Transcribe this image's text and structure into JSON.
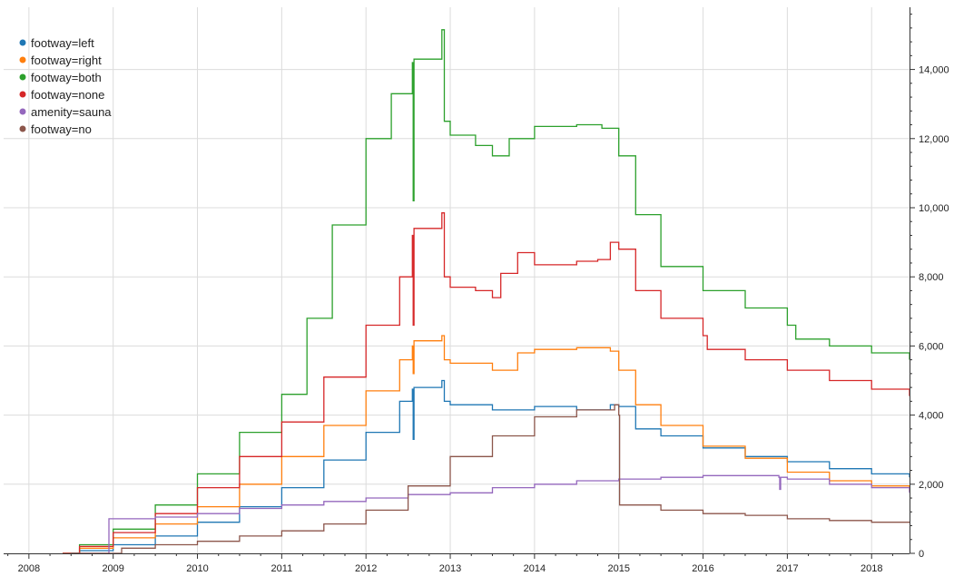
{
  "chart_data": {
    "type": "line",
    "x_ticks": [
      "2008",
      "2009",
      "2010",
      "2011",
      "2012",
      "2013",
      "2014",
      "2015",
      "2016",
      "2017",
      "2018"
    ],
    "y_ticks": [
      "0",
      "2,000",
      "4,000",
      "6,000",
      "8,000",
      "10,000",
      "12,000",
      "14,000"
    ],
    "xlim": [
      2007.7,
      2018.45
    ],
    "ylim": [
      0,
      15800
    ],
    "grid": true,
    "legend_position": "top-left",
    "series": [
      {
        "name": "footway=left",
        "color": "#1f77b4",
        "x": [
          2008.4,
          2008.6,
          2009.0,
          2009.5,
          2010.0,
          2010.5,
          2011.0,
          2011.5,
          2012.0,
          2012.4,
          2012.55,
          2012.56,
          2012.57,
          2012.9,
          2012.93,
          2013.0,
          2013.5,
          2014.0,
          2014.5,
          2014.9,
          2015.0,
          2015.2,
          2015.5,
          2016.0,
          2016.5,
          2017.0,
          2017.5,
          2018.0,
          2018.45
        ],
        "y": [
          0,
          80,
          250,
          500,
          900,
          1350,
          1900,
          2700,
          3500,
          4400,
          4750,
          3300,
          4800,
          5000,
          4400,
          4300,
          4150,
          4250,
          4150,
          4300,
          4250,
          3600,
          3400,
          3050,
          2800,
          2650,
          2450,
          2300,
          2200
        ]
      },
      {
        "name": "footway=right",
        "color": "#ff7f0e",
        "x": [
          2008.4,
          2008.6,
          2009.0,
          2009.5,
          2010.0,
          2010.5,
          2011.0,
          2011.5,
          2012.0,
          2012.4,
          2012.55,
          2012.56,
          2012.57,
          2012.9,
          2012.93,
          2013.0,
          2013.5,
          2013.8,
          2014.0,
          2014.5,
          2014.9,
          2015.0,
          2015.2,
          2015.5,
          2016.0,
          2016.5,
          2017.0,
          2017.5,
          2018.0,
          2018.45
        ],
        "y": [
          0,
          150,
          450,
          850,
          1350,
          2000,
          2800,
          3700,
          4700,
          5600,
          6000,
          5200,
          6150,
          6300,
          5600,
          5500,
          5300,
          5800,
          5900,
          5950,
          5850,
          5300,
          4300,
          3700,
          3100,
          2750,
          2350,
          2100,
          1950,
          1800
        ]
      },
      {
        "name": "footway=both",
        "color": "#2ca02c",
        "x": [
          2008.4,
          2008.6,
          2009.0,
          2009.5,
          2010.0,
          2010.5,
          2011.0,
          2011.3,
          2011.6,
          2012.0,
          2012.3,
          2012.55,
          2012.56,
          2012.57,
          2012.9,
          2012.93,
          2013.0,
          2013.3,
          2013.5,
          2013.7,
          2014.0,
          2014.5,
          2014.8,
          2015.0,
          2015.2,
          2015.5,
          2016.0,
          2016.5,
          2017.0,
          2017.1,
          2017.5,
          2018.0,
          2018.45
        ],
        "y": [
          0,
          250,
          700,
          1400,
          2300,
          3500,
          4600,
          6800,
          9500,
          12000,
          13300,
          14200,
          10200,
          14300,
          15150,
          12500,
          12100,
          11800,
          11500,
          12000,
          12350,
          12400,
          12300,
          11500,
          9800,
          8300,
          7600,
          7100,
          6600,
          6200,
          6000,
          5800,
          5600
        ]
      },
      {
        "name": "footway=none",
        "color": "#d62728",
        "x": [
          2008.4,
          2008.6,
          2009.0,
          2009.5,
          2010.0,
          2010.5,
          2011.0,
          2011.5,
          2012.0,
          2012.4,
          2012.55,
          2012.56,
          2012.57,
          2012.9,
          2012.93,
          2013.0,
          2013.3,
          2013.5,
          2013.6,
          2013.8,
          2014.0,
          2014.5,
          2014.75,
          2014.9,
          2015.0,
          2015.2,
          2015.5,
          2016.0,
          2016.05,
          2016.5,
          2017.0,
          2017.5,
          2018.0,
          2018.45
        ],
        "y": [
          0,
          200,
          600,
          1150,
          1900,
          2800,
          3800,
          5100,
          6600,
          8000,
          9200,
          6600,
          9400,
          9850,
          8000,
          7700,
          7600,
          7400,
          8100,
          8700,
          8350,
          8450,
          8500,
          9000,
          8800,
          7600,
          6800,
          6300,
          5900,
          5600,
          5300,
          5000,
          4750,
          4550
        ]
      },
      {
        "name": "amenity=sauna",
        "color": "#9467bd",
        "x": [
          2008.5,
          2008.95,
          2009.0,
          2009.5,
          2010.0,
          2010.5,
          2011.0,
          2011.5,
          2012.0,
          2012.5,
          2013.0,
          2013.5,
          2014.0,
          2014.5,
          2015.0,
          2015.5,
          2016.0,
          2016.5,
          2016.9,
          2016.91,
          2016.92,
          2017.0,
          2017.5,
          2018.0,
          2018.45
        ],
        "y": [
          0,
          1000,
          1000,
          1050,
          1150,
          1300,
          1400,
          1500,
          1600,
          1700,
          1750,
          1900,
          2000,
          2100,
          2150,
          2200,
          2250,
          2250,
          2200,
          1850,
          2200,
          2150,
          2000,
          1900,
          1750
        ]
      },
      {
        "name": "footway=no",
        "color": "#8c564b",
        "x": [
          2008.5,
          2009.1,
          2009.5,
          2010.0,
          2010.5,
          2011.0,
          2011.5,
          2012.0,
          2012.5,
          2013.0,
          2013.5,
          2014.0,
          2014.5,
          2014.95,
          2015.0,
          2015.01,
          2015.5,
          2016.0,
          2016.5,
          2017.0,
          2017.5,
          2018.0,
          2018.45
        ],
        "y": [
          0,
          150,
          250,
          350,
          500,
          650,
          850,
          1250,
          1950,
          2800,
          3400,
          3950,
          4150,
          4300,
          4000,
          1400,
          1250,
          1150,
          1100,
          1000,
          950,
          900,
          900
        ]
      }
    ]
  }
}
